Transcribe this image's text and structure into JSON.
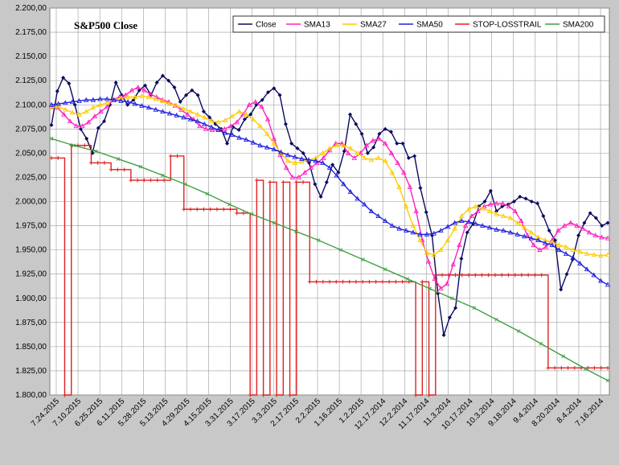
{
  "chart_data": {
    "type": "line",
    "title": "S&P500 Close",
    "xlabel": "",
    "ylabel": "",
    "ylim": [
      1800,
      2200
    ],
    "y_ticks": [
      1800,
      1825,
      1850,
      1875,
      1900,
      1925,
      1950,
      1975,
      2000,
      2025,
      2050,
      2075,
      2100,
      2125,
      2150,
      2175,
      2200
    ],
    "y_tick_labels": [
      "1.800,00",
      "1.825,00",
      "1.850,00",
      "1.875,00",
      "1.900,00",
      "1.925,00",
      "1.950,00",
      "1.975,00",
      "2.000,00",
      "2.025,00",
      "2.050,00",
      "2.075,00",
      "2.100,00",
      "2.125,00",
      "2.150,00",
      "2.175,00",
      "2.200,00"
    ],
    "x_tick_labels": [
      "7.24.2015",
      "7.10.2015",
      "6.25.2015",
      "6.11.2015",
      "5.28.2015",
      "5.13.2015",
      "4.29.2015",
      "4.15.2015",
      "3.31.2015",
      "3.17.2015",
      "3.3.2015",
      "2.17.2015",
      "2.2.2015",
      "1.16.2015",
      "1.2.2015",
      "12.17.2014",
      "12.2.2014",
      "11.17.2014",
      "11.3.2014",
      "10.17.2014",
      "10.3.2014",
      "9.18.2014",
      "9.4.2014",
      "8.20.2014",
      "8.4.2014",
      "7.16.2014"
    ],
    "grid": true,
    "legend_position": "top-right",
    "series": [
      {
        "name": "Close",
        "color": "#0a0a60",
        "values": [
          2079,
          2114,
          2128,
          2122,
          2100,
          2075,
          2065,
          2050,
          2076,
          2083,
          2100,
          2123,
          2110,
          2100,
          2105,
          2115,
          2120,
          2110,
          2123,
          2130,
          2125,
          2118,
          2103,
          2110,
          2115,
          2110,
          2093,
          2087,
          2080,
          2075,
          2060,
          2077,
          2074,
          2085,
          2090,
          2100,
          2105,
          2113,
          2117,
          2110,
          2080,
          2060,
          2055,
          2050,
          2040,
          2018,
          2005,
          2020,
          2038,
          2030,
          2052,
          2090,
          2080,
          2070,
          2050,
          2056,
          2070,
          2075,
          2072,
          2060,
          2060,
          2045,
          2047,
          2014,
          1989,
          1965,
          1905,
          1862,
          1880,
          1890,
          1941,
          1968,
          1977,
          1995,
          2000,
          2011,
          1990,
          1995,
          1997,
          2000,
          2005,
          2003,
          2000,
          1998,
          1985,
          1970,
          1960,
          1909,
          1925,
          1940,
          1965,
          1978,
          1988,
          1983,
          1975,
          1978
        ]
      },
      {
        "name": "SMA13",
        "color": "#ff20c0",
        "values": [
          2098,
          2097,
          2090,
          2083,
          2078,
          2078,
          2082,
          2088,
          2093,
          2098,
          2105,
          2108,
          2110,
          2115,
          2118,
          2115,
          2111,
          2108,
          2105,
          2103,
          2099,
          2095,
          2090,
          2085,
          2078,
          2075,
          2074,
          2074,
          2075,
          2078,
          2082,
          2090,
          2100,
          2103,
          2098,
          2085,
          2065,
          2048,
          2035,
          2025,
          2025,
          2030,
          2035,
          2040,
          2045,
          2053,
          2060,
          2060,
          2050,
          2045,
          2050,
          2058,
          2063,
          2065,
          2060,
          2050,
          2040,
          2030,
          2015,
          1990,
          1960,
          1938,
          1920,
          1910,
          1915,
          1935,
          1955,
          1975,
          1985,
          1990,
          1995,
          1997,
          1998,
          1998,
          1995,
          1990,
          1980,
          1965,
          1955,
          1950,
          1953,
          1960,
          1970,
          1975,
          1978,
          1975,
          1972,
          1968,
          1965,
          1963,
          1962
        ]
      },
      {
        "name": "SMA27",
        "color": "#ffcc00",
        "values": [
          2097,
          2098,
          2095,
          2092,
          2090,
          2093,
          2097,
          2100,
          2102,
          2105,
          2107,
          2108,
          2108,
          2109,
          2108,
          2106,
          2104,
          2101,
          2099,
          2096,
          2093,
          2090,
          2087,
          2083,
          2082,
          2084,
          2088,
          2093,
          2090,
          2085,
          2078,
          2070,
          2060,
          2050,
          2042,
          2040,
          2041,
          2043,
          2045,
          2050,
          2055,
          2058,
          2058,
          2055,
          2050,
          2045,
          2043,
          2045,
          2042,
          2030,
          2015,
          1995,
          1975,
          1960,
          1947,
          1945,
          1950,
          1960,
          1972,
          1985,
          1992,
          1995,
          1993,
          1990,
          1987,
          1985,
          1983,
          1978,
          1973,
          1968,
          1963,
          1960,
          1958,
          1955,
          1953,
          1950,
          1948,
          1946,
          1945,
          1944,
          1945
        ]
      },
      {
        "name": "SMA50",
        "color": "#2020e0",
        "values": [
          2100,
          2101,
          2102,
          2103,
          2104,
          2105,
          2105,
          2106,
          2106,
          2105,
          2104,
          2103,
          2101,
          2099,
          2097,
          2095,
          2093,
          2091,
          2089,
          2087,
          2085,
          2083,
          2080,
          2077,
          2074,
          2071,
          2069,
          2066,
          2064,
          2061,
          2058,
          2056,
          2054,
          2051,
          2048,
          2046,
          2044,
          2043,
          2042,
          2040,
          2035,
          2027,
          2018,
          2010,
          2003,
          1997,
          1990,
          1985,
          1980,
          1975,
          1972,
          1970,
          1968,
          1966,
          1966,
          1967,
          1970,
          1974,
          1978,
          1980,
          1979,
          1977,
          1975,
          1973,
          1971,
          1970,
          1968,
          1966,
          1964,
          1962,
          1960,
          1957,
          1955,
          1950,
          1946,
          1942,
          1936,
          1930,
          1924,
          1918,
          1914
        ]
      },
      {
        "name": "STOP-LOSSTRAIL",
        "color": "#e02020",
        "values": [
          2045,
          2045,
          1800,
          2058,
          2058,
          2058,
          2040,
          2040,
          2040,
          2033,
          2033,
          2033,
          2022,
          2022,
          2022,
          2022,
          2022,
          2022,
          2047,
          2047,
          1992,
          1992,
          1992,
          1992,
          1992,
          1992,
          1992,
          1992,
          1988,
          1988,
          1800,
          2022,
          1800,
          2020,
          1800,
          2020,
          1800,
          2020,
          2020,
          1917,
          1917,
          1917,
          1917,
          1917,
          1917,
          1917,
          1917,
          1917,
          1917,
          1917,
          1917,
          1917,
          1917,
          1917,
          1917,
          1800,
          1917,
          1800,
          1924,
          1924,
          1924,
          1924,
          1924,
          1924,
          1924,
          1924,
          1924,
          1924,
          1924,
          1924,
          1924,
          1924,
          1924,
          1924,
          1924,
          1828,
          1828,
          1828,
          1828,
          1828,
          1828,
          1828,
          1828,
          1828,
          1828
        ]
      },
      {
        "name": "SMA200",
        "color": "#40a040",
        "values": [
          2065,
          2058,
          2052,
          2044,
          2036,
          2027,
          2018,
          2008,
          1997,
          1987,
          1978,
          1969,
          1960,
          1950,
          1940,
          1930,
          1920,
          1910,
          1900,
          1890,
          1878,
          1866,
          1853,
          1840,
          1827,
          1815
        ]
      }
    ]
  }
}
